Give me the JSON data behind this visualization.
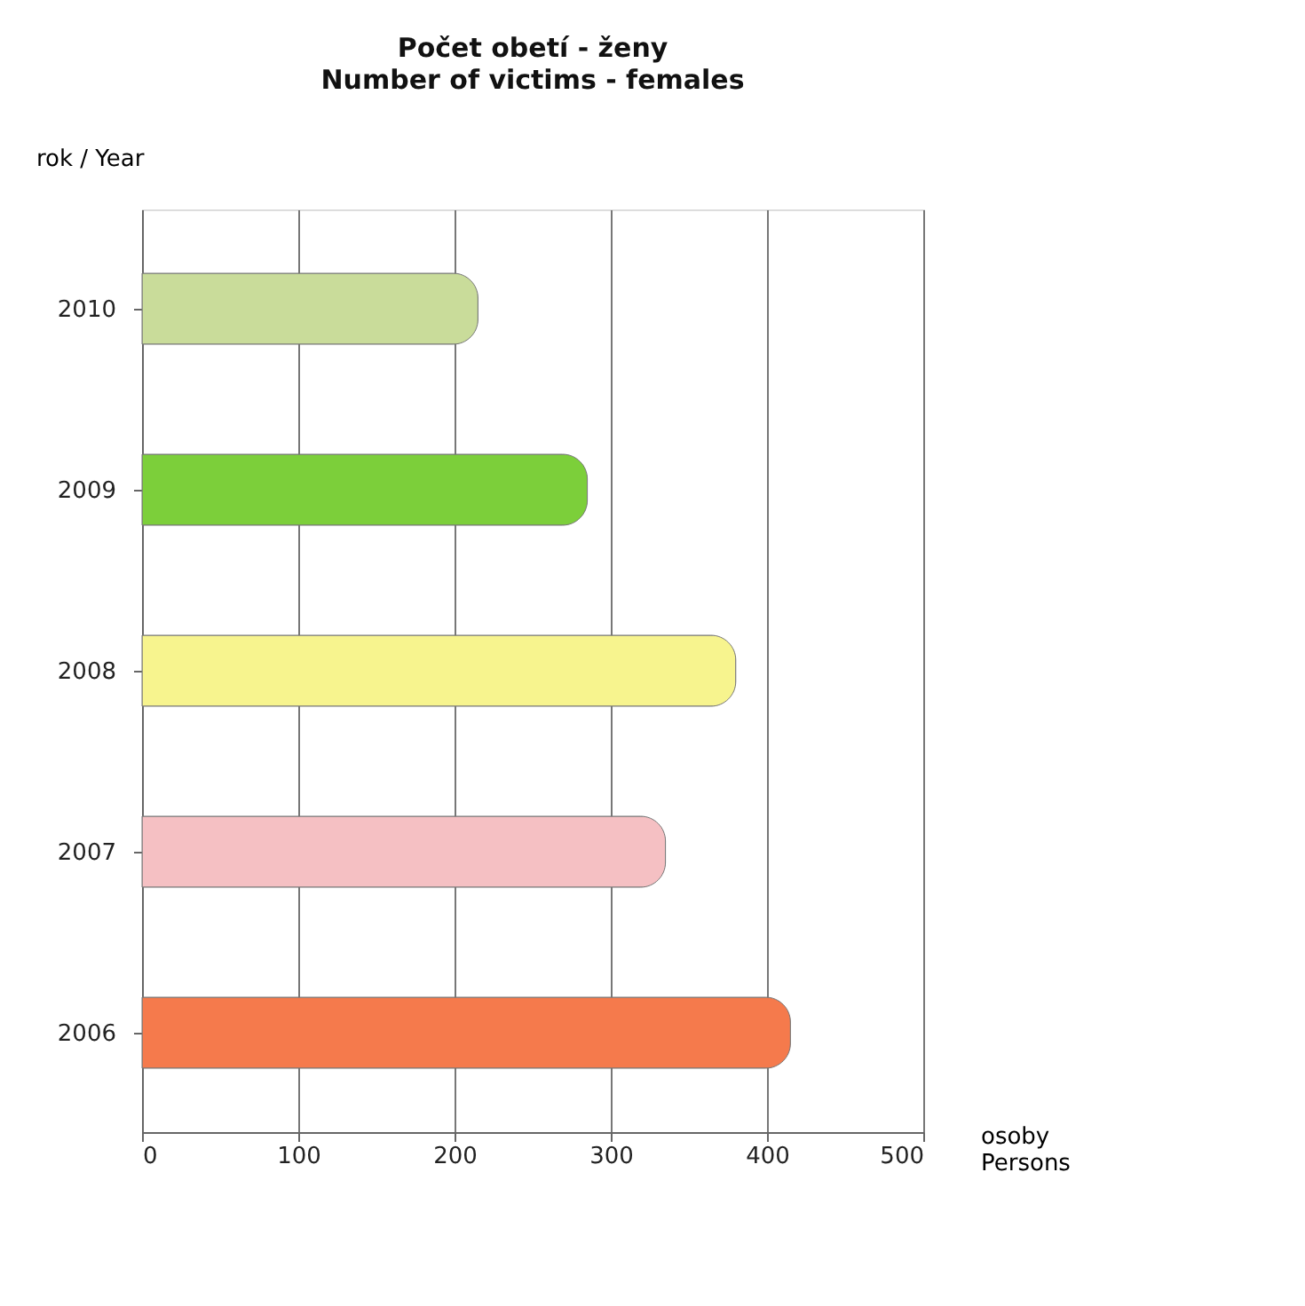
{
  "chart_data": {
    "type": "bar",
    "orientation": "horizontal",
    "title": "Počet obetí - ženy",
    "subtitle": "Number of victims - females",
    "ylabel": "rok / Year",
    "xlabel": "osoby\nPersons",
    "categories": [
      "2010",
      "2009",
      "2008",
      "2007",
      "2006"
    ],
    "values": [
      215,
      285,
      380,
      335,
      415
    ],
    "colors": [
      "#c9dc9a",
      "#7ccf3a",
      "#f7f48e",
      "#f5c0c3",
      "#f57a4c"
    ],
    "xlim": [
      0,
      500
    ],
    "xticks": [
      0,
      100,
      200,
      300,
      400,
      500
    ],
    "grid": "x"
  }
}
